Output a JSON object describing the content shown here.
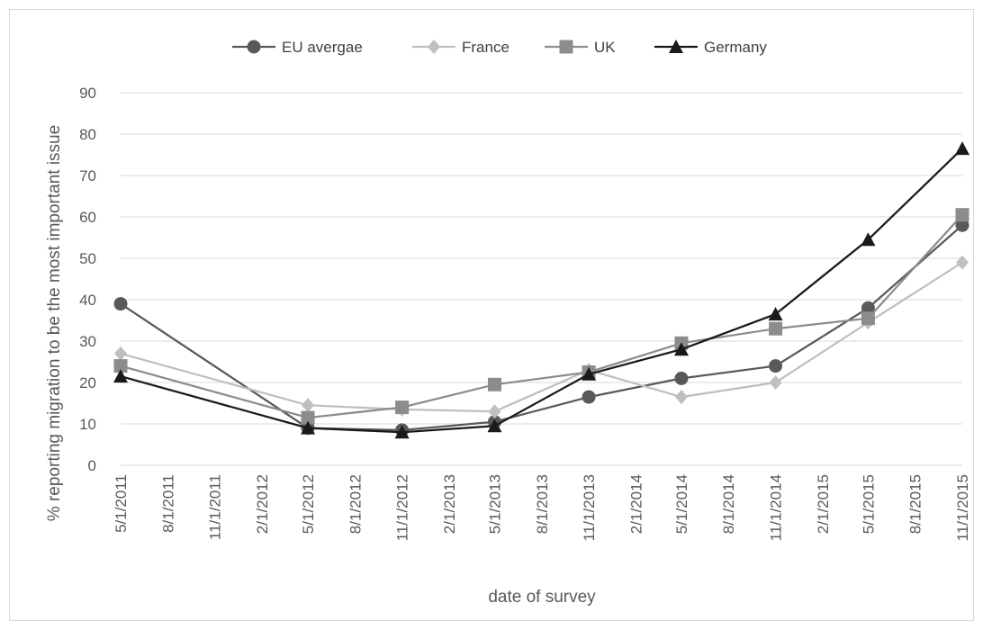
{
  "chart_data": {
    "type": "line",
    "xlabel": "date of survey",
    "ylabel": "% reporting migration to be the most important issue",
    "ylim": [
      0,
      90
    ],
    "y_ticks": [
      0,
      10,
      20,
      30,
      40,
      50,
      60,
      70,
      80,
      90
    ],
    "x_range": [
      "5/1/2011",
      "11/1/2015"
    ],
    "x_tick_labels": [
      "5/1/2011",
      "8/1/2011",
      "11/1/2011",
      "2/1/2012",
      "5/1/2012",
      "8/1/2012",
      "11/1/2012",
      "2/1/2013",
      "5/1/2013",
      "8/1/2013",
      "11/1/2013",
      "2/1/2014",
      "5/1/2014",
      "8/1/2014",
      "11/1/2014",
      "2/1/2015",
      "5/1/2015",
      "8/1/2015",
      "11/1/2015"
    ],
    "x": [
      "5/1/2011",
      "5/1/2012",
      "11/1/2012",
      "5/1/2013",
      "11/1/2013",
      "5/1/2014",
      "11/1/2014",
      "5/1/2015",
      "11/1/2015"
    ],
    "grid": true,
    "legend_position": "top",
    "series": [
      {
        "name": "EU avergae",
        "values": [
          39,
          9,
          8.5,
          10.5,
          16.5,
          21,
          24,
          38,
          58
        ],
        "color": "#595959",
        "marker": "circle"
      },
      {
        "name": "France",
        "values": [
          27,
          14.5,
          13.5,
          13,
          23,
          16.5,
          20,
          34.5,
          49
        ],
        "color": "#bfbfbf",
        "marker": "diamond"
      },
      {
        "name": "UK",
        "values": [
          24,
          11.5,
          14,
          19.5,
          22.5,
          29.5,
          33,
          35.5,
          60.5
        ],
        "color": "#8c8c8c",
        "marker": "square"
      },
      {
        "name": "Germany",
        "values": [
          21.5,
          9,
          8,
          9.5,
          22,
          28,
          36.5,
          54.5,
          76.5
        ],
        "color": "#1a1a1a",
        "marker": "triangle"
      }
    ]
  }
}
